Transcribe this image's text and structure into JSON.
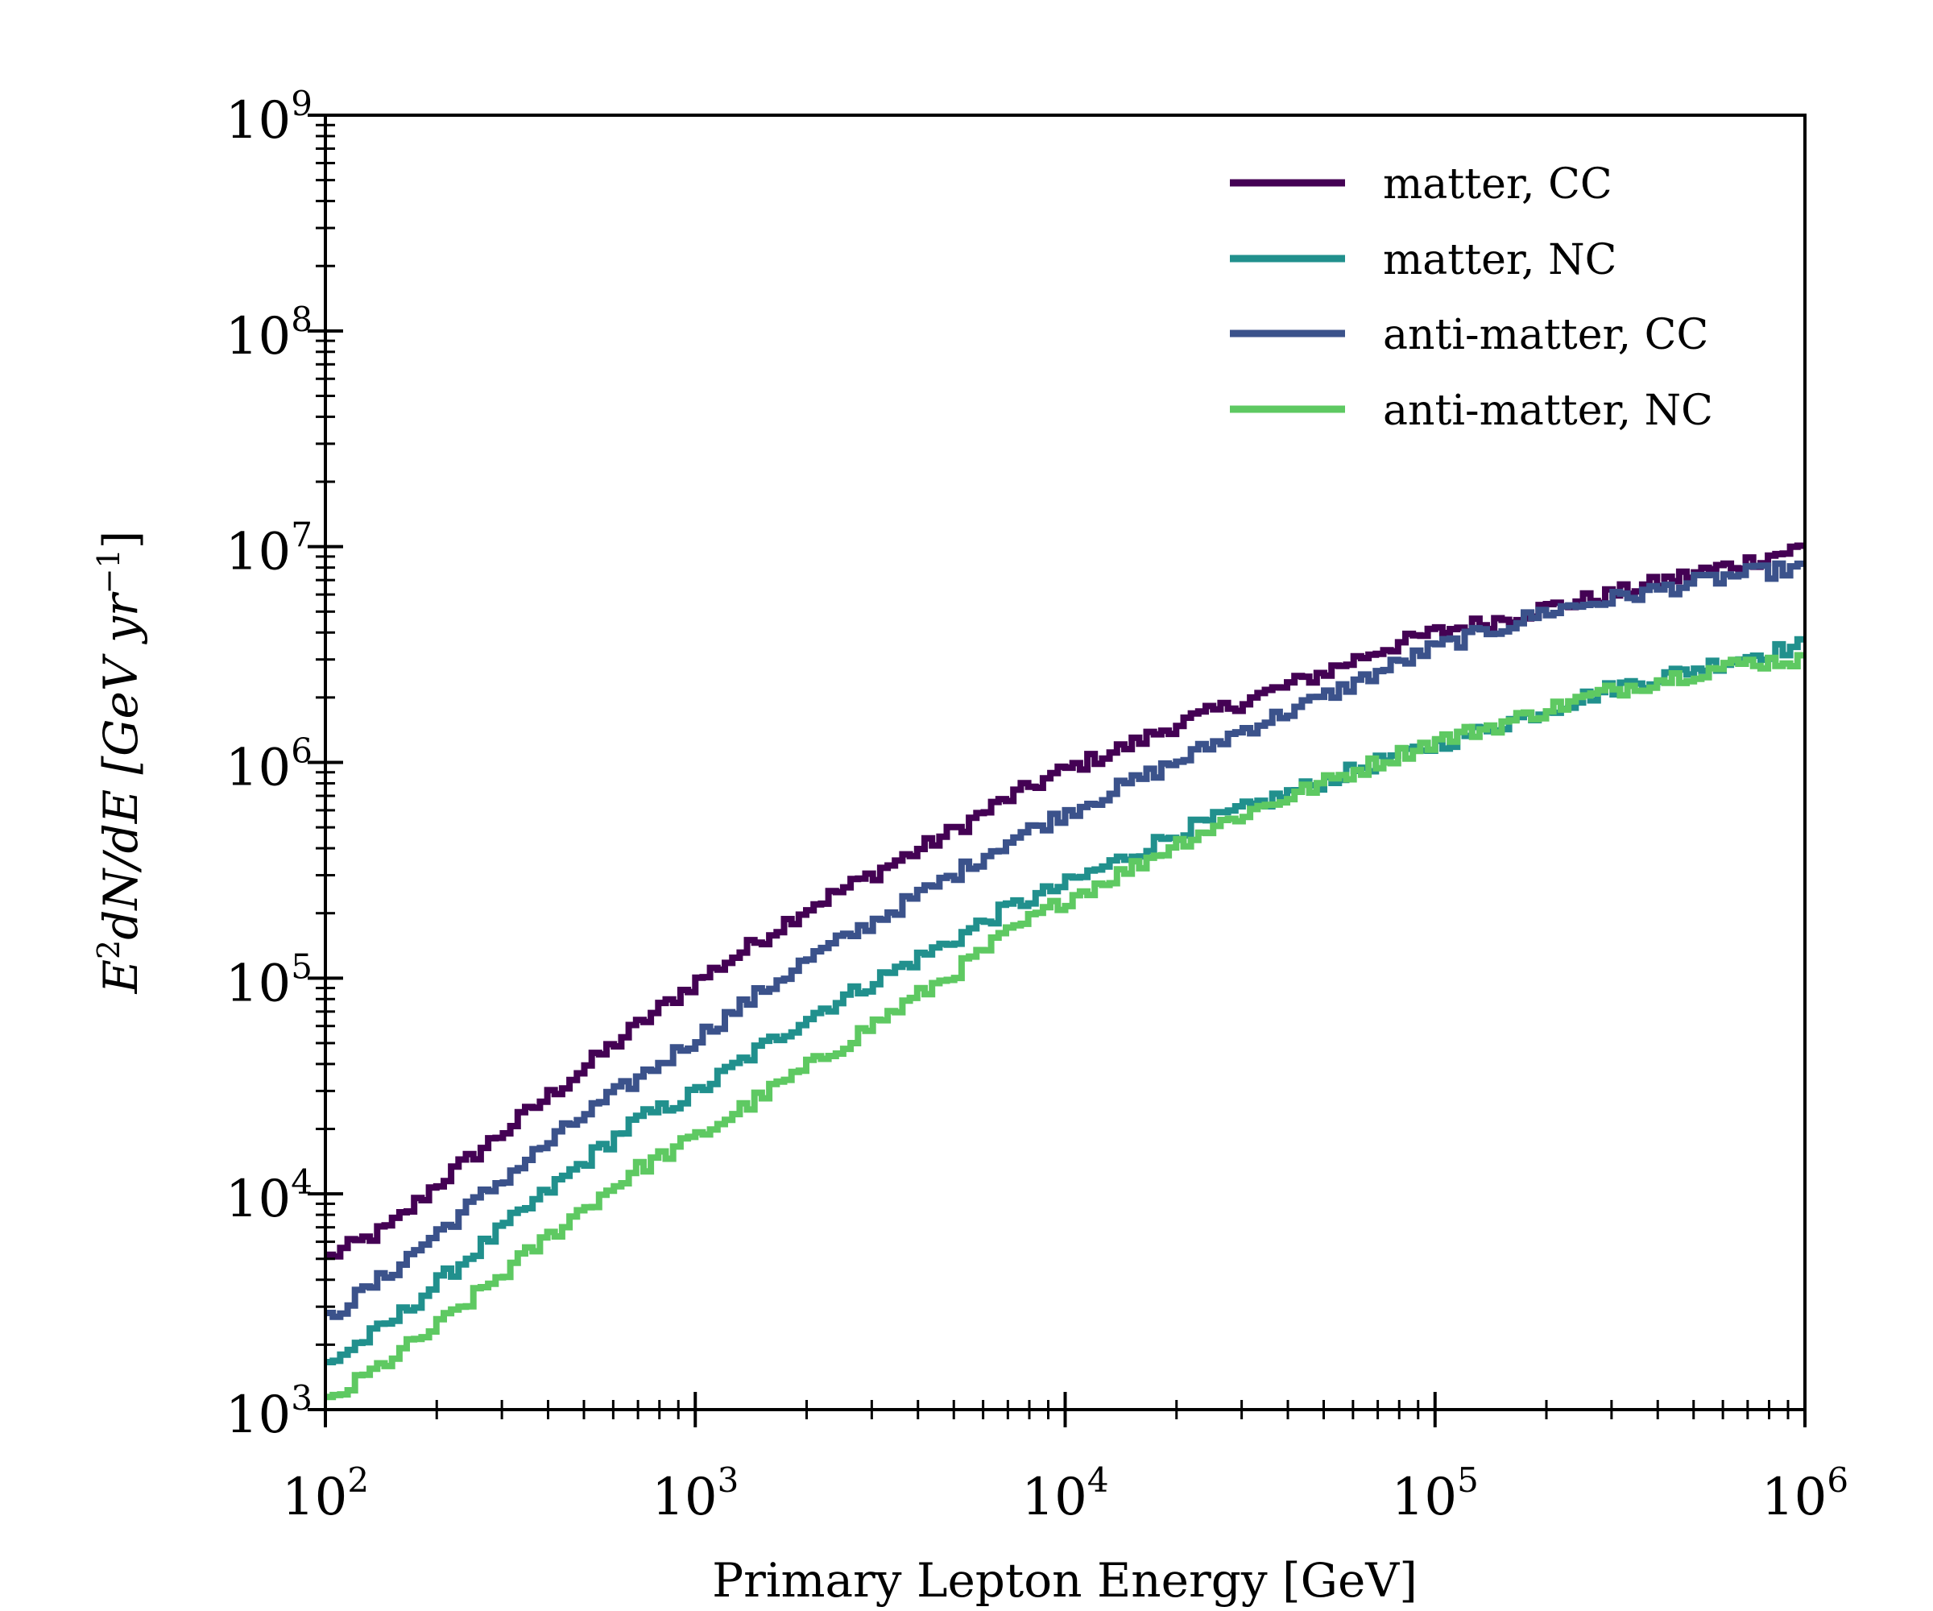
{
  "chart_data": {
    "type": "line",
    "style": "step",
    "x_scale": "log",
    "y_scale": "log",
    "xlim": [
      100,
      1000000
    ],
    "ylim": [
      1000,
      1000000000
    ],
    "xlabel": "Primary Lepton Energy [GeV]",
    "ylabel": {
      "main": "E",
      "sup1": "2",
      "mid": "dN/dE [GeV yr",
      "sup2": "−1",
      "end": "]"
    },
    "x_ticks": [
      {
        "value": 100,
        "base": "10",
        "exp": "2"
      },
      {
        "value": 1000,
        "base": "10",
        "exp": "3"
      },
      {
        "value": 10000,
        "base": "10",
        "exp": "4"
      },
      {
        "value": 100000,
        "base": "10",
        "exp": "5"
      },
      {
        "value": 1000000,
        "base": "10",
        "exp": "6"
      }
    ],
    "y_ticks": [
      {
        "value": 1000,
        "base": "10",
        "exp": "3"
      },
      {
        "value": 10000,
        "base": "10",
        "exp": "4"
      },
      {
        "value": 100000,
        "base": "10",
        "exp": "5"
      },
      {
        "value": 1000000,
        "base": "10",
        "exp": "6"
      },
      {
        "value": 10000000,
        "base": "10",
        "exp": "7"
      },
      {
        "value": 100000000,
        "base": "10",
        "exp": "8"
      },
      {
        "value": 1000000000,
        "base": "10",
        "exp": "9"
      }
    ],
    "legend_position": "top-right",
    "series": [
      {
        "name": "matter, CC",
        "color": "#440154",
        "x": [
          100,
          150,
          200,
          300,
          500,
          700,
          1000,
          1500,
          2000,
          3000,
          5000,
          7000,
          10000,
          15000,
          20000,
          30000,
          50000,
          70000,
          100000,
          150000,
          200000,
          300000,
          500000,
          700000,
          1000000
        ],
        "y": [
          5000,
          7000,
          11000,
          19000,
          38000,
          60000,
          95000,
          150000,
          210000,
          300000,
          480000,
          680000,
          920000,
          1200000,
          1500000,
          1900000,
          2600000,
          3300000,
          4000000,
          4600000,
          5200000,
          6000000,
          7500000,
          8500000,
          10000000
        ]
      },
      {
        "name": "matter, NC",
        "color": "#21908d",
        "x": [
          100,
          150,
          200,
          300,
          500,
          700,
          1000,
          1500,
          2000,
          3000,
          5000,
          7000,
          10000,
          15000,
          20000,
          30000,
          50000,
          70000,
          100000,
          150000,
          200000,
          300000,
          500000,
          700000,
          1000000
        ],
        "y": [
          1600,
          2500,
          3800,
          6800,
          14000,
          22000,
          29000,
          47000,
          65000,
          95000,
          150000,
          210000,
          270000,
          370000,
          470000,
          600000,
          820000,
          1000000,
          1200000,
          1500000,
          1750000,
          2200000,
          2700000,
          3100000,
          3500000
        ]
      },
      {
        "name": "anti-matter, CC",
        "color": "#3b528b",
        "x": [
          100,
          150,
          200,
          300,
          500,
          700,
          1000,
          1500,
          2000,
          3000,
          5000,
          7000,
          10000,
          15000,
          20000,
          30000,
          50000,
          70000,
          100000,
          150000,
          200000,
          300000,
          500000,
          700000,
          1000000
        ],
        "y": [
          2600,
          4300,
          6500,
          11500,
          23000,
          34000,
          52000,
          85000,
          120000,
          180000,
          300000,
          430000,
          580000,
          800000,
          1000000,
          1400000,
          2000000,
          2600000,
          3400000,
          4200000,
          5000000,
          5700000,
          6800000,
          7500000,
          8000000
        ]
      },
      {
        "name": "anti-matter, NC",
        "color": "#5ec962",
        "x": [
          100,
          150,
          200,
          300,
          500,
          700,
          1000,
          1500,
          2000,
          3000,
          5000,
          7000,
          10000,
          15000,
          20000,
          30000,
          50000,
          70000,
          100000,
          150000,
          200000,
          300000,
          500000,
          700000,
          1000000
        ],
        "y": [
          1050,
          1700,
          2400,
          4200,
          8500,
          13000,
          18000,
          28000,
          38000,
          60000,
          105000,
          160000,
          230000,
          320000,
          420000,
          570000,
          800000,
          1000000,
          1250000,
          1500000,
          1750000,
          2150000,
          2600000,
          2900000,
          3000000
        ]
      }
    ]
  }
}
